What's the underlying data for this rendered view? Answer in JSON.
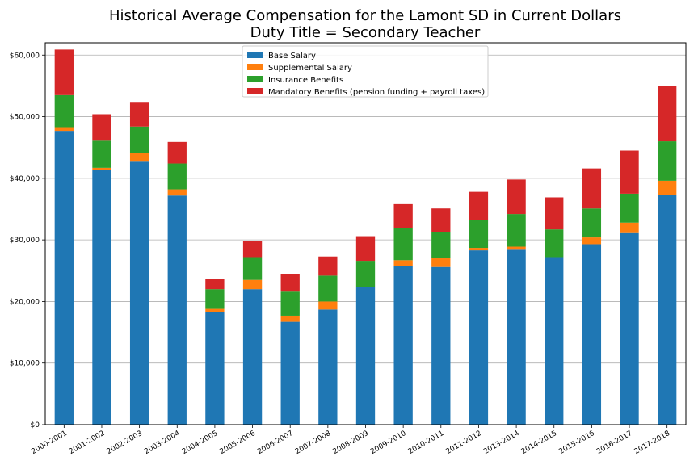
{
  "chart_data": {
    "type": "bar",
    "stacked": true,
    "title": "Historical Average Compensation for the Lamont SD in Current Dollars",
    "subtitle": "Duty Title = Secondary Teacher",
    "xlabel": "",
    "ylabel": "",
    "ylim": [
      0,
      62000
    ],
    "grid": "horizontal",
    "legend_position": "top-center",
    "yticks": [
      0,
      10000,
      20000,
      30000,
      40000,
      50000,
      60000
    ],
    "ytick_labels": [
      "$0",
      "$10,000",
      "$20,000",
      "$30,000",
      "$40,000",
      "$50,000",
      "$60,000"
    ],
    "categories": [
      "2000-2001",
      "2001-2002",
      "2002-2003",
      "2003-2004",
      "2004-2005",
      "2005-2006",
      "2006-2007",
      "2007-2008",
      "2008-2009",
      "2009-2010",
      "2010-2011",
      "2011-2012",
      "2013-2014",
      "2014-2015",
      "2015-2016",
      "2016-2017",
      "2017-2018"
    ],
    "series": [
      {
        "name": "Base Salary",
        "color": "#1f77b4",
        "values": [
          47700,
          41300,
          42700,
          37200,
          18300,
          22000,
          16700,
          18700,
          22400,
          25800,
          25600,
          28300,
          28400,
          27200,
          29300,
          31100,
          37300
        ]
      },
      {
        "name": "Supplemental Salary",
        "color": "#ff7f0e",
        "values": [
          600,
          400,
          1400,
          1000,
          500,
          1500,
          1000,
          1300,
          0,
          900,
          1400,
          400,
          500,
          0,
          1100,
          1700,
          2300
        ]
      },
      {
        "name": "Insurance Benefits",
        "color": "#2ca02c",
        "values": [
          5200,
          4400,
          4300,
          4200,
          3200,
          3700,
          3900,
          4200,
          4200,
          5200,
          4300,
          4500,
          5300,
          4500,
          4700,
          4700,
          6400
        ]
      },
      {
        "name": "Mandatory Benefits (pension funding + payroll taxes)",
        "color": "#d62728",
        "values": [
          7400,
          4300,
          4000,
          3500,
          1700,
          2600,
          2800,
          3100,
          4000,
          3900,
          3800,
          4600,
          5600,
          5200,
          6500,
          7000,
          9000
        ]
      }
    ]
  }
}
